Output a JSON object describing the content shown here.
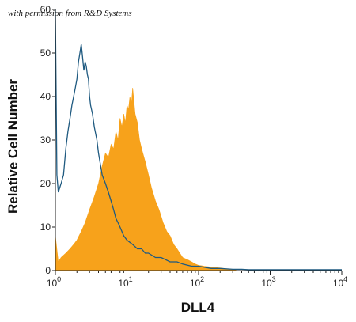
{
  "chart_data": {
    "type": "area",
    "watermark": "with permission from R&D Systems",
    "xlabel": "DLL4",
    "ylabel": "Relative Cell Number",
    "x_scale": "log",
    "xlim": [
      1,
      10000
    ],
    "ylim": [
      0,
      60
    ],
    "x_ticks": [
      {
        "value": 1,
        "base": "10",
        "exp": "0"
      },
      {
        "value": 10,
        "base": "10",
        "exp": "1"
      },
      {
        "value": 100,
        "base": "10",
        "exp": "2"
      },
      {
        "value": 1000,
        "base": "10",
        "exp": "3"
      },
      {
        "value": 10000,
        "base": "10",
        "exp": "4"
      }
    ],
    "y_ticks": [
      "0",
      "10",
      "20",
      "30",
      "40",
      "50",
      "60"
    ],
    "series": [
      {
        "style": "filled",
        "color": "#f7a21b",
        "x": [
          1,
          1.1,
          1.2,
          1.4,
          1.6,
          1.8,
          2,
          2.3,
          2.6,
          3,
          3.5,
          4,
          4.5,
          5,
          5.5,
          6,
          6.5,
          7,
          7.5,
          8,
          8.5,
          9,
          9.5,
          10,
          10.5,
          11,
          11.5,
          12,
          13,
          14,
          15,
          16,
          18,
          20,
          22,
          25,
          28,
          32,
          36,
          40,
          45,
          50,
          60,
          70,
          80,
          90,
          100,
          120,
          150,
          200,
          250,
          300,
          350
        ],
        "y": [
          8,
          2,
          3,
          4,
          5,
          6,
          7,
          9,
          11,
          14,
          17,
          20,
          24,
          27,
          26,
          29,
          28,
          32,
          30,
          35,
          33,
          36,
          34,
          38,
          37,
          40,
          38,
          42,
          36,
          34,
          30,
          28,
          25,
          22,
          19,
          16,
          14,
          11,
          9,
          8,
          6,
          5,
          3,
          2.5,
          2,
          1.5,
          1.2,
          1,
          0.8,
          0.6,
          0.4,
          0.3,
          0
        ]
      },
      {
        "style": "line",
        "color": "#1f5a80",
        "x": [
          1,
          1.05,
          1.1,
          1.2,
          1.3,
          1.4,
          1.5,
          1.6,
          1.7,
          1.8,
          1.9,
          2,
          2.1,
          2.2,
          2.3,
          2.4,
          2.5,
          2.6,
          2.7,
          2.8,
          2.9,
          3,
          3.1,
          3.3,
          3.5,
          3.8,
          4,
          4.5,
          5,
          5.5,
          6,
          6.5,
          7,
          7.5,
          8,
          9,
          10,
          12,
          14,
          16,
          18,
          20,
          25,
          30,
          40,
          50,
          60,
          80,
          100,
          150,
          200,
          300,
          400,
          500,
          1000,
          2000,
          3000,
          5000,
          8000,
          9000,
          10000
        ],
        "y": [
          60,
          22,
          18,
          20,
          22,
          28,
          32,
          35,
          38,
          40,
          42,
          44,
          48,
          50,
          52,
          49,
          46,
          48,
          47,
          45,
          44,
          40,
          38,
          36,
          33,
          30,
          27,
          22,
          20,
          18,
          16,
          14,
          12,
          11,
          10,
          8,
          7,
          6,
          5,
          5,
          4,
          4,
          3,
          3,
          2,
          2,
          1.5,
          1,
          1,
          0.5,
          0.5,
          0.3,
          0.3,
          0.2,
          0.2,
          0.2,
          0.2,
          0.2,
          0.2,
          0.2,
          0.2
        ]
      }
    ]
  }
}
